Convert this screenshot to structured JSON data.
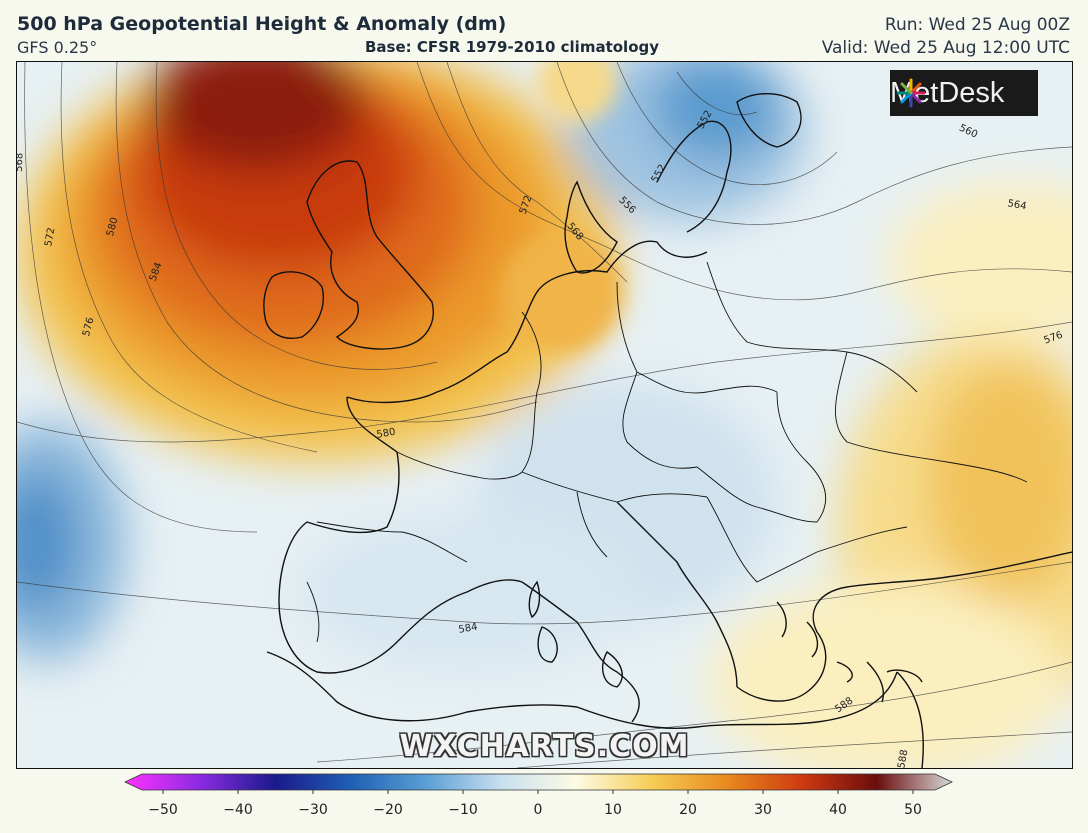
{
  "header": {
    "title": "500 hPa Geopotential Height & Anomaly (dm)",
    "model": "GFS 0.25°",
    "base": "Base: CFSR 1979-2010 climatology",
    "run": "Run: Wed 25 Aug 00Z",
    "valid": "Valid: Wed 25 Aug 12:00 UTC"
  },
  "brand": {
    "logo_text": "MetDesk",
    "watermark": "WXCHARTS.COM"
  },
  "contours": [
    {
      "label": "568"
    },
    {
      "label": "572"
    },
    {
      "label": "580"
    },
    {
      "label": "584"
    },
    {
      "label": "576"
    },
    {
      "label": "580"
    },
    {
      "label": "572"
    },
    {
      "label": "568"
    },
    {
      "label": "556"
    },
    {
      "label": "552"
    },
    {
      "label": "552"
    },
    {
      "label": "560"
    },
    {
      "label": "564"
    },
    {
      "label": "576"
    },
    {
      "label": "584"
    },
    {
      "label": "588"
    },
    {
      "label": "588"
    }
  ],
  "colorbar": {
    "ticks": [
      "−50",
      "−40",
      "−30",
      "−20",
      "−10",
      "0",
      "10",
      "20",
      "30",
      "40",
      "50"
    ],
    "min": -50,
    "max": 50,
    "stops": [
      "#ff33ff",
      "#8a2be2",
      "#1a1a8c",
      "#1f5fb4",
      "#5a9fd4",
      "#c8dfee",
      "#fdfbe4",
      "#f6cd55",
      "#e88a1e",
      "#cf3a12",
      "#6b0d0d",
      "#d9d9d9"
    ]
  }
}
